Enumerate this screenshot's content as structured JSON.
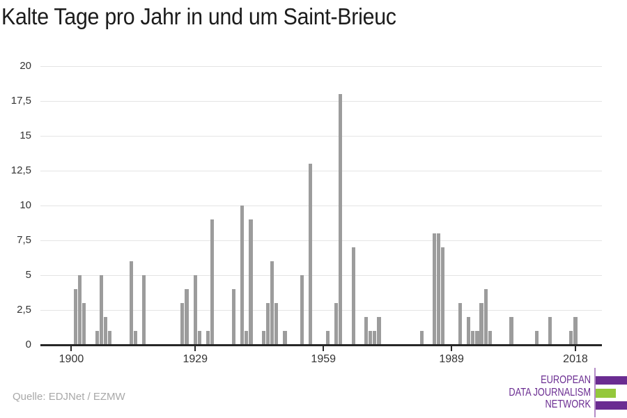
{
  "page": {
    "title": "Kalte Tage pro Jahr in und um Saint-Brieuc"
  },
  "source": {
    "label": "Quelle: EDJNet / EZMW"
  },
  "logo": {
    "lines": [
      "EUROPEAN",
      "DATA JOURNALISM",
      "NETWORK"
    ],
    "purple": "#6a2c91",
    "light_purple": "#b48cc7",
    "green": "#94c83c"
  },
  "chart_data": {
    "type": "bar",
    "title": "Kalte Tage pro Jahr in und um Saint-Brieuc",
    "xlabel": "",
    "ylabel": "",
    "x": [
      1901,
      1902,
      1903,
      1906,
      1907,
      1908,
      1909,
      1914,
      1915,
      1917,
      1926,
      1927,
      1929,
      1930,
      1932,
      1933,
      1938,
      1940,
      1941,
      1942,
      1945,
      1946,
      1947,
      1948,
      1950,
      1954,
      1956,
      1960,
      1962,
      1963,
      1966,
      1969,
      1970,
      1971,
      1972,
      1982,
      1985,
      1986,
      1987,
      1991,
      1993,
      1994,
      1995,
      1996,
      1997,
      1998,
      2003,
      2009,
      2012,
      2017,
      2018
    ],
    "values": [
      4,
      5,
      3,
      1,
      5,
      2,
      1,
      6,
      1,
      5,
      3,
      4,
      5,
      1,
      1,
      9,
      4,
      10,
      1,
      9,
      1,
      3,
      6,
      3,
      1,
      5,
      13,
      1,
      3,
      18,
      7,
      2,
      1,
      1,
      2,
      1,
      8,
      8,
      7,
      3,
      2,
      1,
      1,
      3,
      4,
      1,
      2,
      1,
      2,
      1,
      2
    ],
    "xlim": [
      1892.75,
      2024.2
    ],
    "ylim": [
      0,
      20
    ],
    "x_ticks": [
      1900,
      1929,
      1959,
      1989,
      2018
    ],
    "y_ticks": [
      0,
      2.5,
      5,
      7.5,
      10,
      12.5,
      15,
      17.5,
      20
    ],
    "y_tick_labels": [
      "0",
      "2,5",
      "5",
      "7,5",
      "10",
      "12,5",
      "15",
      "17,5",
      "20"
    ],
    "grid": "horizontal",
    "legend": "none",
    "bar_color": "#9c9c9c",
    "grid_color": "#e4e4e4",
    "axis_color": "#262626",
    "tick_label_color": "#333333"
  }
}
